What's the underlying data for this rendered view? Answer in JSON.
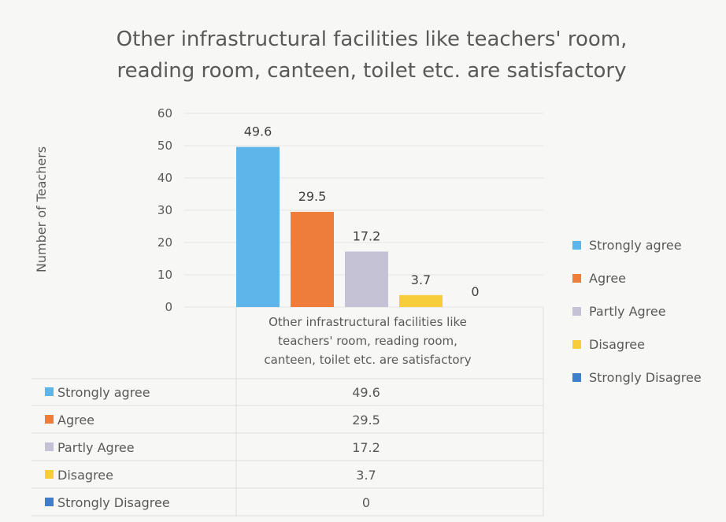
{
  "chart_data": {
    "type": "bar",
    "title": [
      "Other infrastructural facilities like teachers' room,",
      "reading room, canteen, toilet etc. are satisfactory"
    ],
    "ylabel": "Number of Teachers",
    "xlabel": "",
    "ylim": [
      0,
      60
    ],
    "yticks": [
      "0",
      "10",
      "20",
      "30",
      "40",
      "50",
      "60"
    ],
    "category_label": [
      "Other infrastructural facilities like",
      "teachers' room, reading room,",
      "canteen, toilet etc. are satisfactory"
    ],
    "grid": true,
    "legend_position": "right",
    "data_table": true,
    "series": [
      {
        "name": "Strongly agree",
        "value": 49.6,
        "label": "49.6",
        "color": "#5db5ea"
      },
      {
        "name": "Agree",
        "value": 29.5,
        "label": "29.5",
        "color": "#ee7d3b"
      },
      {
        "name": "Partly Agree",
        "value": 17.2,
        "label": "17.2",
        "color": "#c6c2d5"
      },
      {
        "name": "Disagree",
        "value": 3.7,
        "label": "3.7",
        "color": "#f8cd3c"
      },
      {
        "name": "Strongly Disagree",
        "value": 0,
        "label": "0",
        "color": "#3f7fca"
      }
    ]
  }
}
